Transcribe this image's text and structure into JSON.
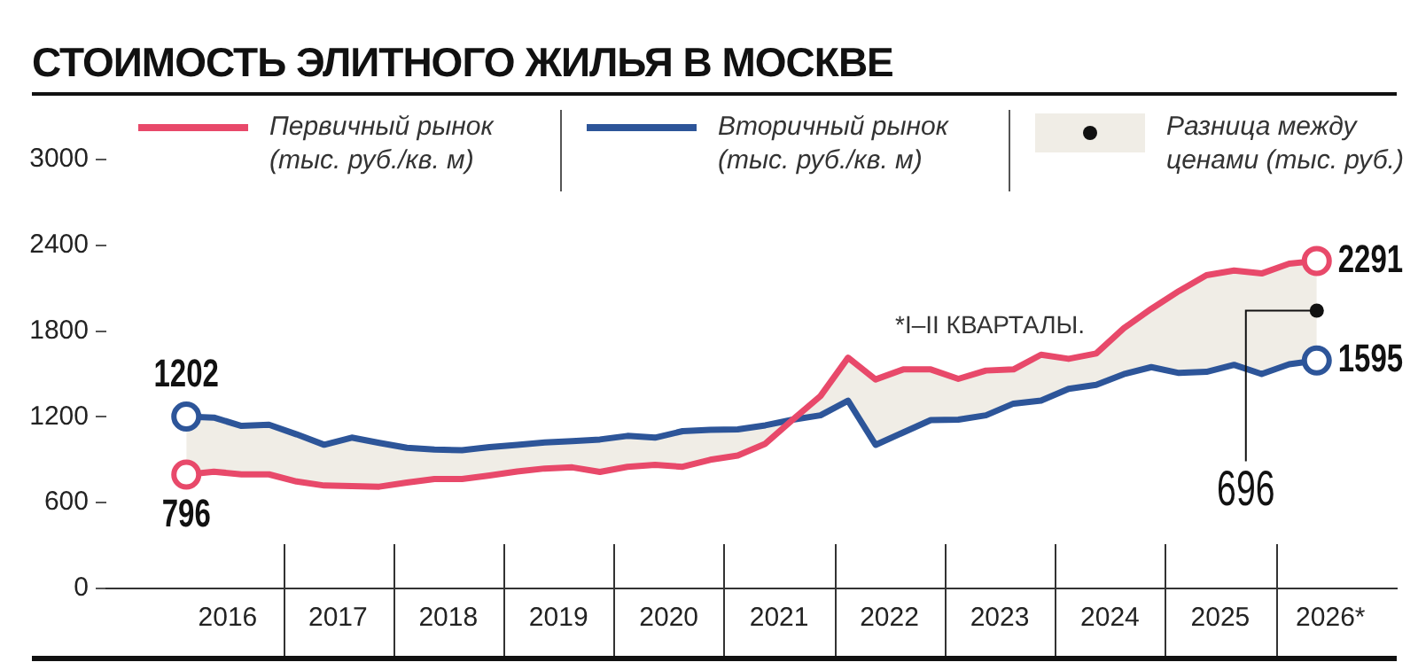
{
  "chart_data": {
    "type": "line",
    "title": "СТОИМОСТЬ ЭЛИТНОГО ЖИЛЬЯ В МОСКВЕ",
    "x": [
      2016.125,
      2016.375,
      2016.625,
      2016.875,
      2017.125,
      2017.375,
      2017.625,
      2017.875,
      2018.125,
      2018.375,
      2018.625,
      2018.875,
      2019.125,
      2019.375,
      2019.625,
      2019.875,
      2020.125,
      2020.375,
      2020.625,
      2020.875,
      2021.125,
      2021.375,
      2021.625,
      2021.875,
      2022.125,
      2022.375,
      2022.625,
      2022.875,
      2023.125,
      2023.375,
      2023.625,
      2023.875,
      2024.125,
      2024.375,
      2024.625,
      2024.875,
      2025.125,
      2025.375,
      2025.625,
      2025.875,
      2026.125,
      2026.375
    ],
    "series": [
      {
        "name": "Первичный рынок (тыс. руб./кв. м)",
        "color": "#e8496a",
        "values": [
          796,
          817,
          798,
          798,
          748,
          720,
          716,
          712,
          741,
          765,
          765,
          790,
          818,
          839,
          847,
          815,
          851,
          864,
          851,
          900,
          930,
          1012,
          1181,
          1346,
          1614,
          1462,
          1532,
          1532,
          1466,
          1524,
          1532,
          1635,
          1606,
          1643,
          1820,
          1956,
          2080,
          2191,
          2224,
          2203,
          2272,
          2291
        ],
        "value_labels": [
          "796",
          null,
          null,
          null,
          null,
          null,
          null,
          null,
          null,
          null,
          null,
          null,
          null,
          null,
          null,
          null,
          null,
          null,
          null,
          null,
          null,
          null,
          null,
          null,
          null,
          null,
          null,
          null,
          null,
          null,
          null,
          null,
          null,
          null,
          null,
          null,
          null,
          null,
          null,
          null,
          null,
          "2291"
        ],
        "lower": [
          796,
          817,
          798,
          798,
          748,
          720,
          716,
          712,
          741,
          765,
          765,
          790,
          818,
          839,
          847,
          815,
          851,
          864,
          851,
          900,
          930,
          1012,
          1181,
          1346,
          1614,
          1462,
          1532,
          1532,
          1466,
          1524,
          1532,
          1635,
          1606,
          1643,
          1820,
          1956,
          2080,
          2191,
          2224,
          2203,
          2272,
          2291
        ],
        "upper": [
          1202,
          1195,
          1137,
          1145,
          1078,
          1005,
          1055,
          1018,
          984,
          972,
          967,
          989,
          1004,
          1021,
          1030,
          1042,
          1067,
          1055,
          1100,
          1110,
          1113,
          1141,
          1181,
          1211,
          1313,
          1004,
          1091,
          1178,
          1181,
          1211,
          1293,
          1314,
          1396,
          1424,
          1499,
          1548,
          1507,
          1515,
          1564,
          1500,
          1568,
          1595
        ]
      },
      {
        "name": "Вторичный рынок (тыс. руб./кв. м)",
        "color": "#2d5599",
        "values": [
          1202,
          1195,
          1137,
          1145,
          1078,
          1005,
          1055,
          1018,
          984,
          972,
          967,
          989,
          1004,
          1021,
          1030,
          1042,
          1067,
          1055,
          1100,
          1110,
          1113,
          1141,
          1181,
          1211,
          1313,
          1004,
          1091,
          1178,
          1181,
          1211,
          1293,
          1314,
          1396,
          1424,
          1499,
          1548,
          1507,
          1515,
          1564,
          1500,
          1568,
          1595
        ],
        "value_labels": [
          "1202",
          null,
          null,
          null,
          null,
          null,
          null,
          null,
          null,
          null,
          null,
          null,
          null,
          null,
          null,
          null,
          null,
          null,
          null,
          null,
          null,
          null,
          null,
          null,
          null,
          null,
          null,
          null,
          null,
          null,
          null,
          null,
          null,
          null,
          null,
          null,
          null,
          null,
          null,
          null,
          null,
          "1595"
        ]
      }
    ],
    "xlim": [
      2015.4,
      2027.1
    ],
    "xticks": [
      {
        "value": 2016.5,
        "label": "2016"
      },
      {
        "value": 2017.5,
        "label": "2017"
      },
      {
        "value": 2018.5,
        "label": "2018"
      },
      {
        "value": 2019.5,
        "label": "2019"
      },
      {
        "value": 2020.5,
        "label": "2020"
      },
      {
        "value": 2021.5,
        "label": "2021"
      },
      {
        "value": 2022.5,
        "label": "2022"
      },
      {
        "value": 2023.5,
        "label": "2023"
      },
      {
        "value": 2024.5,
        "label": "2024"
      },
      {
        "value": 2025.5,
        "label": "2025"
      },
      {
        "value": 2026.5,
        "label": "2026*"
      }
    ],
    "ylim": [
      0,
      3000
    ],
    "yticks": [
      0,
      600,
      1200,
      1800,
      2400,
      3000
    ],
    "annotations": [
      "*I–II КВАРТАЛЫ.",
      {
        "text": "696",
        "x": 2026.375,
        "y": 1943
      },
      "Разница между ценами (тыс. руб.)"
    ],
    "legend": "top",
    "grid": false
  }
}
